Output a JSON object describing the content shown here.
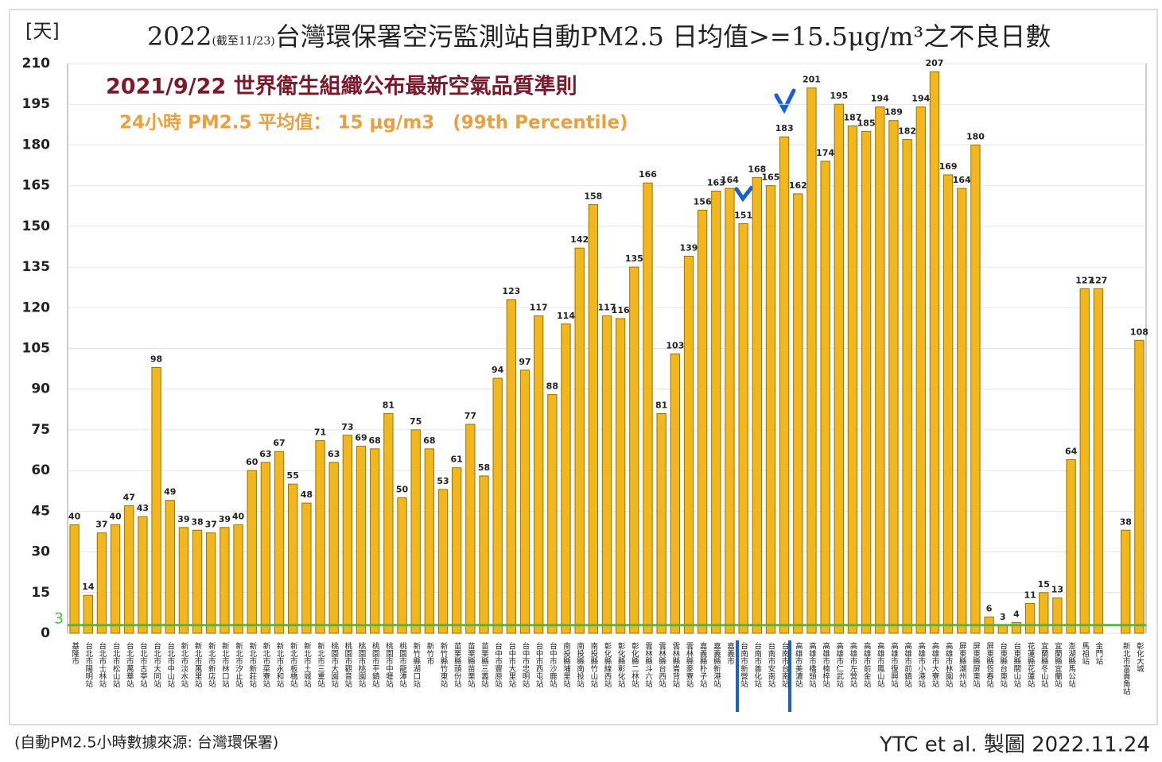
{
  "chart_data": {
    "type": "bar",
    "unit_label": "[天]",
    "title_year": "2022",
    "title_note": "(截至11/23)",
    "title": "台灣環保署空污監測站自動PM2.5 日均值>=15.5μg/m³之不良日數",
    "annotation_red": "2021/9/22 世界衛生組織公布最新空氣品質準則",
    "annotation_orange": "24小時 PM2.5 平均值： 15 μg/m3　(99th Percentile)",
    "source": "(自動PM2.5小時數據來源: 台灣環保署)",
    "credit": "YTC et al. 製圖 2022.11.24",
    "color": "#f2b61f",
    "grid": true,
    "threshold": {
      "value": 3,
      "color": "#3fc33f"
    },
    "ylim": [
      0,
      210
    ],
    "yticks": [
      0,
      15,
      30,
      45,
      60,
      75,
      90,
      105,
      120,
      135,
      150,
      165,
      180,
      195,
      210
    ],
    "categories": [
      "基隆市",
      "台北市陽明站",
      "台北市士林站",
      "台北市松山站",
      "台北市萬華站",
      "台北市古亭站",
      "台北市大同站",
      "台北市中山站",
      "新北市淡水站",
      "新北市萬里站",
      "新北市新店站",
      "新北市林口站",
      "新北市汐止站",
      "新北市新莊站",
      "新北市菜寮站",
      "新北市永和站",
      "新北市板橋站",
      "新北市土城站",
      "新北市三重站",
      "桃園市大園站",
      "桃園市觀音站",
      "桃園市桃園站",
      "桃園市平鎮站",
      "桃園市中壢站",
      "桃園市龍潭站",
      "新竹縣湖口站",
      "新竹市",
      "新竹縣竹東站",
      "苗栗縣頭份站",
      "苗栗縣苗栗站",
      "苗栗縣三義站",
      "台中市豐原站",
      "台中市大里站",
      "台中市忠明站",
      "台中市西屯站",
      "台中市沙鹿站",
      "南投縣埔里站",
      "南投縣南投站",
      "南投縣竹山站",
      "彰化縣線西站",
      "彰化縣彰化站",
      "彰化縣二林站",
      "雲林縣斗六站",
      "雲林縣台西站",
      "雲林縣崙背站",
      "雲林縣麥寮站",
      "嘉義縣朴子站",
      "嘉義縣新港站",
      "嘉義市",
      "台南市新營站",
      "台南市善化站",
      "台南市安南站",
      "台南市台南站",
      "高雄市美濃站",
      "高雄市橋頭站",
      "高雄市楠梓站",
      "高雄市仁武站",
      "高雄市左營站",
      "高雄市前金站",
      "高雄市鳳山站",
      "高雄市復興站",
      "高雄市前鎮站",
      "高雄市小港站",
      "高雄市大寮站",
      "高雄市林園站",
      "屏東縣潮州站",
      "屏東縣屏東站",
      "屏東縣恆春站",
      "台東縣台東站",
      "台東縣關山站",
      "花蓮縣花蓮站",
      "宜蘭縣冬山站",
      "宜蘭縣宜蘭站",
      "澎湖縣馬公站",
      "馬祖站",
      "金門站",
      null,
      "新北市富貴角站",
      "彰化大城"
    ],
    "values": [
      40,
      14,
      37,
      40,
      47,
      43,
      98,
      49,
      39,
      38,
      37,
      39,
      40,
      60,
      63,
      67,
      55,
      48,
      71,
      63,
      73,
      69,
      68,
      81,
      50,
      75,
      68,
      53,
      61,
      77,
      58,
      94,
      123,
      97,
      117,
      88,
      114,
      142,
      158,
      117,
      116,
      135,
      166,
      81,
      103,
      139,
      156,
      163,
      164,
      151,
      168,
      165,
      183,
      162,
      201,
      174,
      195,
      187,
      185,
      194,
      189,
      182,
      194,
      207,
      169,
      164,
      180,
      6,
      3,
      4,
      11,
      15,
      13,
      64,
      127,
      127,
      null,
      38,
      108
    ]
  }
}
